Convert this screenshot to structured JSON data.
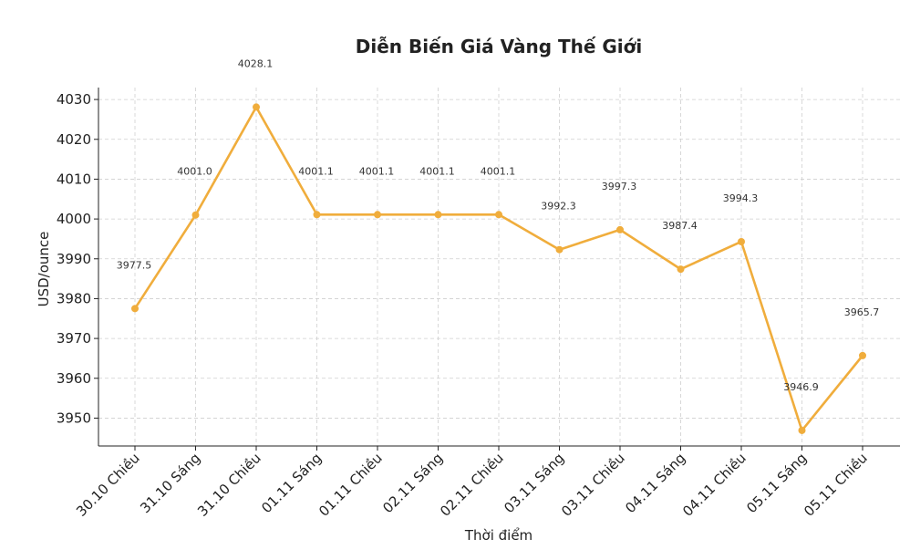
{
  "chart_data": {
    "type": "line",
    "title": "Diễn Biến Giá Vàng Thế Giới",
    "xlabel": "Thời điểm",
    "ylabel": "USD/ounce",
    "categories": [
      "30.10 Chiều",
      "31.10 Sáng",
      "31.10 Chiều",
      "01.11 Sáng",
      "01.11 Chiều",
      "02.11 Sáng",
      "02.11 Chiều",
      "03.11 Sáng",
      "03.11 Chiều",
      "04.11 Sáng",
      "04.11 Chiều",
      "05.11 Sáng",
      "05.11 Chiều"
    ],
    "values": [
      3977.5,
      4001.0,
      4028.1,
      4001.1,
      4001.1,
      4001.1,
      4001.1,
      3992.3,
      3997.3,
      3987.4,
      3994.3,
      3946.9,
      3965.7
    ],
    "data_labels": [
      "3977.5",
      "4001.0",
      "4028.1",
      "4001.1",
      "4001.1",
      "4001.1",
      "4001.1",
      "3992.3",
      "3997.3",
      "3987.4",
      "3994.3",
      "3946.9",
      "3965.7"
    ],
    "yticks": [
      3950,
      3960,
      3970,
      3980,
      3990,
      4000,
      4010,
      4020,
      4030
    ],
    "ylim": [
      3943,
      4033
    ],
    "grid": true,
    "line_color": "#f0ad3c"
  }
}
